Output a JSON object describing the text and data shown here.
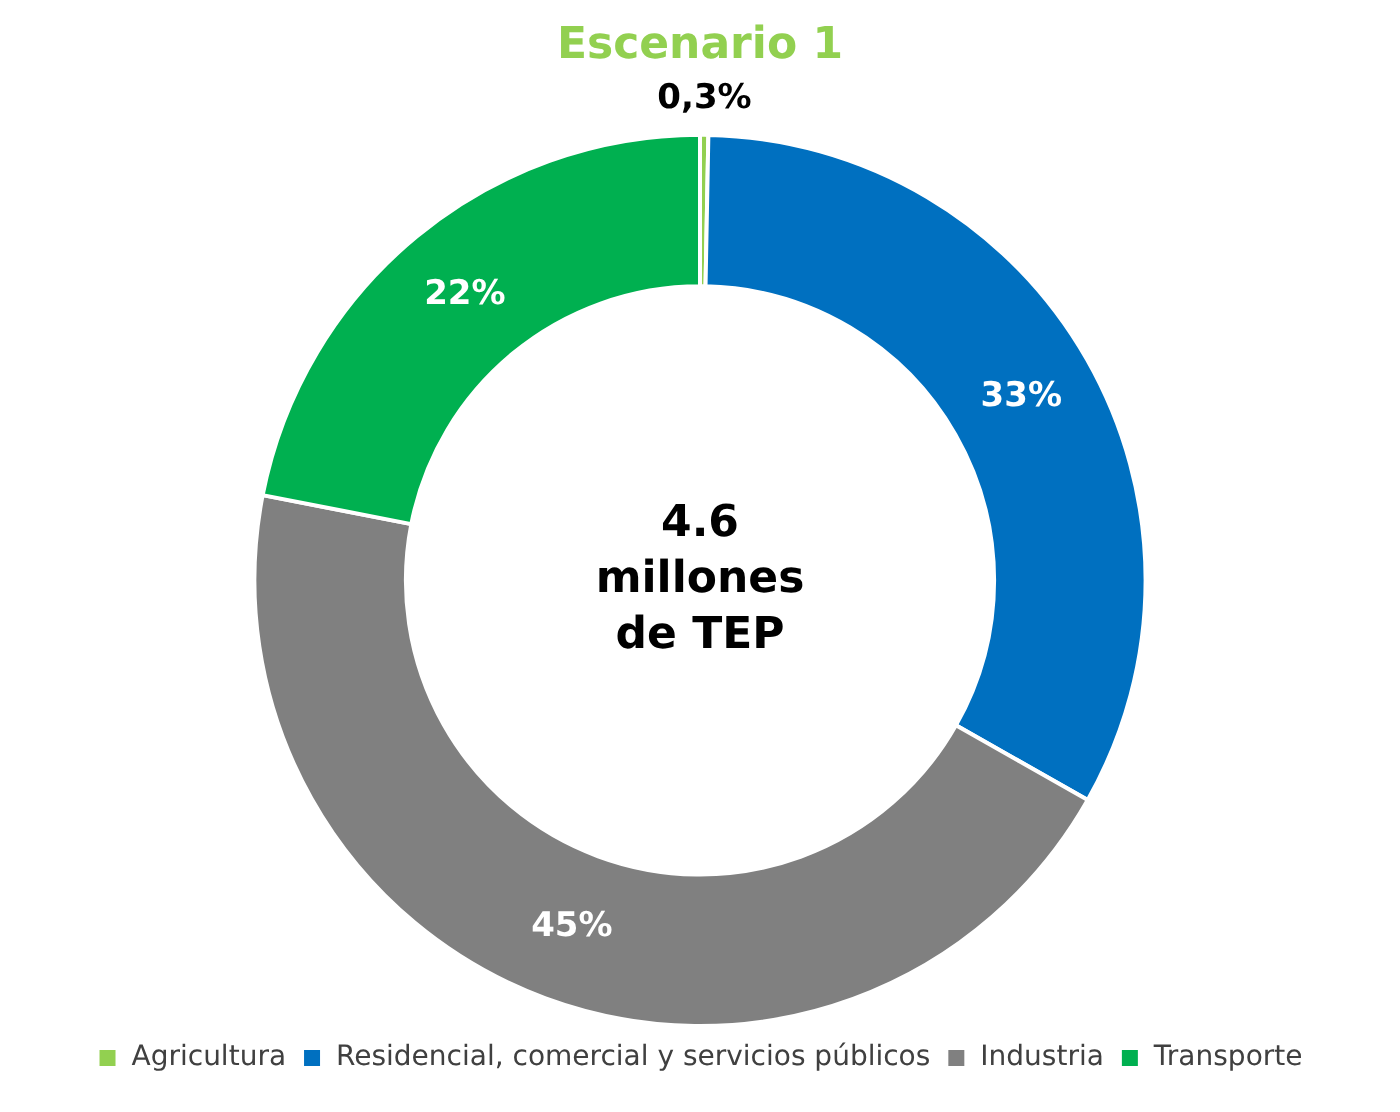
{
  "chart_data": {
    "type": "donut",
    "title": "Escenario 1",
    "categories": [
      "Agricultura",
      "Residencial, comercial y servicios públicos",
      "Industria",
      "Transporte"
    ],
    "values": [
      0.3,
      33,
      45,
      22
    ],
    "colors": [
      "#92d050",
      "#0070c0",
      "#808080",
      "#00b050"
    ],
    "value_labels": [
      "0,3%",
      "33%",
      "45%",
      "22%"
    ],
    "annotations": [
      "4.6\nmillones\nde TEP"
    ],
    "legend": "bottom"
  }
}
